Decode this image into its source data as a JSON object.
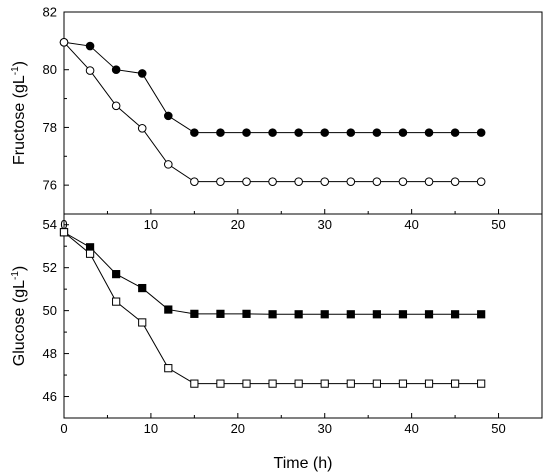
{
  "chart_data": [
    {
      "type": "line",
      "title": "",
      "xlabel": "",
      "ylabel": "Fructose (gL",
      "ylabel_sup": "-1",
      "ylabel_close": ")",
      "xlim": [
        0,
        55
      ],
      "ylim": [
        75,
        82
      ],
      "x_ticks": [
        0,
        10,
        20,
        30,
        40,
        50
      ],
      "x_tick_labels": [
        "0",
        "10",
        "20",
        "30",
        "40",
        "50"
      ],
      "y_ticks": [
        76,
        78,
        80,
        82
      ],
      "y_tick_labels": [
        "76",
        "78",
        "80",
        "82"
      ],
      "grid": false,
      "legend": "none",
      "series": [
        {
          "marker": "filled-circle",
          "x": [
            0,
            3,
            6,
            9,
            12,
            15,
            18,
            21,
            24,
            27,
            30,
            33,
            36,
            39,
            42,
            45,
            48
          ],
          "values": [
            80.95,
            80.82,
            80.0,
            79.87,
            78.4,
            77.82,
            77.82,
            77.82,
            77.82,
            77.82,
            77.82,
            77.82,
            77.82,
            77.82,
            77.82,
            77.82,
            77.82
          ]
        },
        {
          "marker": "open-circle",
          "x": [
            0,
            3,
            6,
            9,
            12,
            15,
            18,
            21,
            24,
            27,
            30,
            33,
            36,
            39,
            42,
            45,
            48
          ],
          "values": [
            80.95,
            79.97,
            78.75,
            77.97,
            76.72,
            76.12,
            76.12,
            76.12,
            76.12,
            76.12,
            76.12,
            76.12,
            76.12,
            76.12,
            76.12,
            76.12,
            76.12
          ]
        }
      ]
    },
    {
      "type": "line",
      "title": "",
      "xlabel": "Time (h)",
      "ylabel": "Glucose (gL",
      "ylabel_sup": "-1",
      "ylabel_close": ")",
      "xlim": [
        0,
        55
      ],
      "ylim": [
        45,
        54.5
      ],
      "x_ticks": [
        0,
        10,
        20,
        30,
        40,
        50
      ],
      "x_tick_labels": [
        "0",
        "10",
        "20",
        "30",
        "40",
        "50"
      ],
      "y_ticks": [
        46,
        48,
        50,
        52,
        54
      ],
      "y_tick_labels": [
        "46",
        "48",
        "50",
        "52",
        "54"
      ],
      "grid": false,
      "legend": "none",
      "series": [
        {
          "marker": "filled-square",
          "x": [
            0,
            3,
            6,
            9,
            12,
            15,
            18,
            21,
            24,
            27,
            30,
            33,
            36,
            39,
            42,
            45,
            48
          ],
          "values": [
            53.65,
            52.95,
            51.7,
            51.05,
            50.05,
            49.85,
            49.85,
            49.85,
            49.83,
            49.83,
            49.83,
            49.83,
            49.83,
            49.83,
            49.83,
            49.83,
            49.83
          ]
        },
        {
          "marker": "open-square",
          "x": [
            0,
            3,
            6,
            9,
            12,
            15,
            18,
            21,
            24,
            27,
            30,
            33,
            36,
            39,
            42,
            45,
            48
          ],
          "values": [
            53.65,
            52.65,
            50.42,
            49.45,
            47.32,
            46.6,
            46.6,
            46.6,
            46.6,
            46.6,
            46.6,
            46.6,
            46.6,
            46.6,
            46.6,
            46.6,
            46.6
          ]
        }
      ]
    }
  ]
}
